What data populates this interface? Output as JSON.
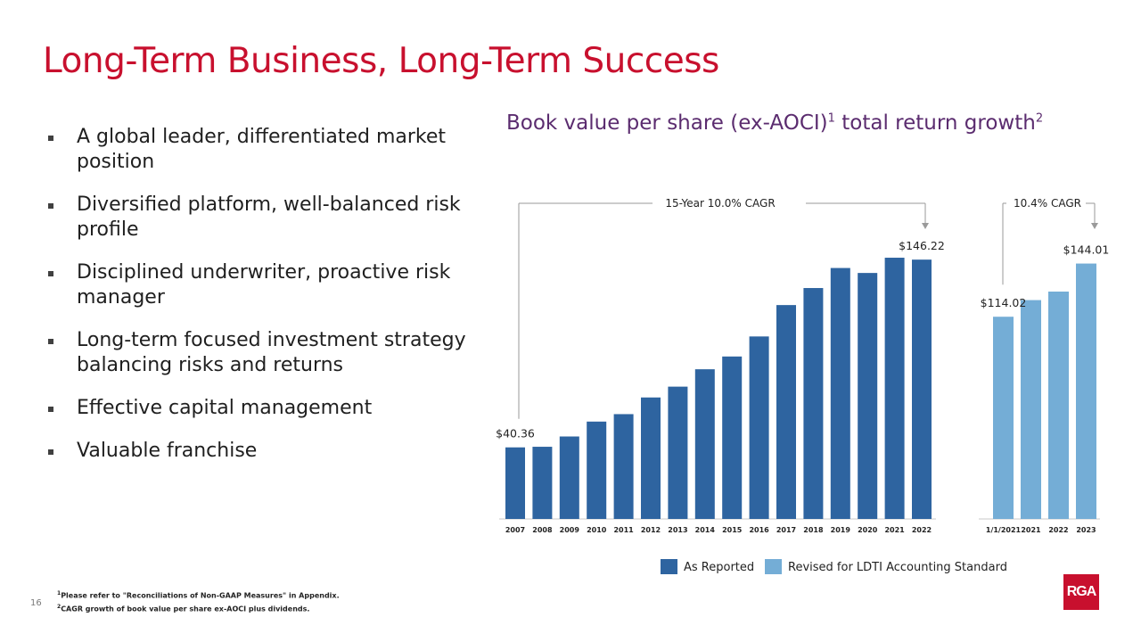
{
  "slide": {
    "title": "Long-Term Business, Long-Term Success",
    "page_number": "16",
    "logo_text": "RGA"
  },
  "bullets": [
    "A global leader, differentiated market position",
    "Diversified platform, well-balanced risk profile",
    "Disciplined underwriter, proactive risk manager",
    "Long-term focused investment strategy balancing risks and returns",
    "Effective capital management",
    "Valuable franchise"
  ],
  "chart_header": {
    "text_main": "Book value per share (ex-AOCI)",
    "sup1": "1",
    "text_rest": " total return growth",
    "sup2": "2"
  },
  "footnotes": [
    {
      "mark": "1",
      "text": "Please refer to \"Reconciliations of Non-GAAP Measures\" in Appendix."
    },
    {
      "mark": "2",
      "text": "CAGR growth of book value per share ex-AOCI plus dividends."
    }
  ],
  "colors": {
    "title_red": "#c8102e",
    "chart_title_purple": "#5b2c6f",
    "as_reported": "#2e64a0",
    "revised": "#74add6"
  },
  "chart_data": [
    {
      "type": "bar",
      "series_name": "As Reported",
      "categories": [
        "2007",
        "2008",
        "2009",
        "2010",
        "2011",
        "2012",
        "2013",
        "2014",
        "2015",
        "2016",
        "2017",
        "2018",
        "2019",
        "2020",
        "2021",
        "2022"
      ],
      "values": [
        40.36,
        40.7,
        46.5,
        54.9,
        59.1,
        68.5,
        74.6,
        84.4,
        91.6,
        102.9,
        120.6,
        130.2,
        141.5,
        138.7,
        147.3,
        146.22
      ],
      "data_labels": [
        {
          "index": 0,
          "text": "$40.36"
        },
        {
          "index": 15,
          "text": "$146.22"
        }
      ],
      "annotation": "15-Year 10.0% CAGR",
      "ylim": [
        0,
        150
      ]
    },
    {
      "type": "bar",
      "series_name": "Revised for LDTI Accounting Standard",
      "categories": [
        "1/1/2021",
        "2021",
        "2022",
        "2023"
      ],
      "values": [
        114.02,
        123.4,
        128.2,
        144.01
      ],
      "data_labels": [
        {
          "index": 0,
          "text": "$114.02"
        },
        {
          "index": 3,
          "text": "$144.01"
        }
      ],
      "annotation": "10.4% CAGR",
      "ylim": [
        0,
        150
      ]
    }
  ],
  "legend": [
    {
      "label": "As Reported",
      "color": "#2e64a0"
    },
    {
      "label": "Revised for LDTI Accounting Standard",
      "color": "#74add6"
    }
  ]
}
